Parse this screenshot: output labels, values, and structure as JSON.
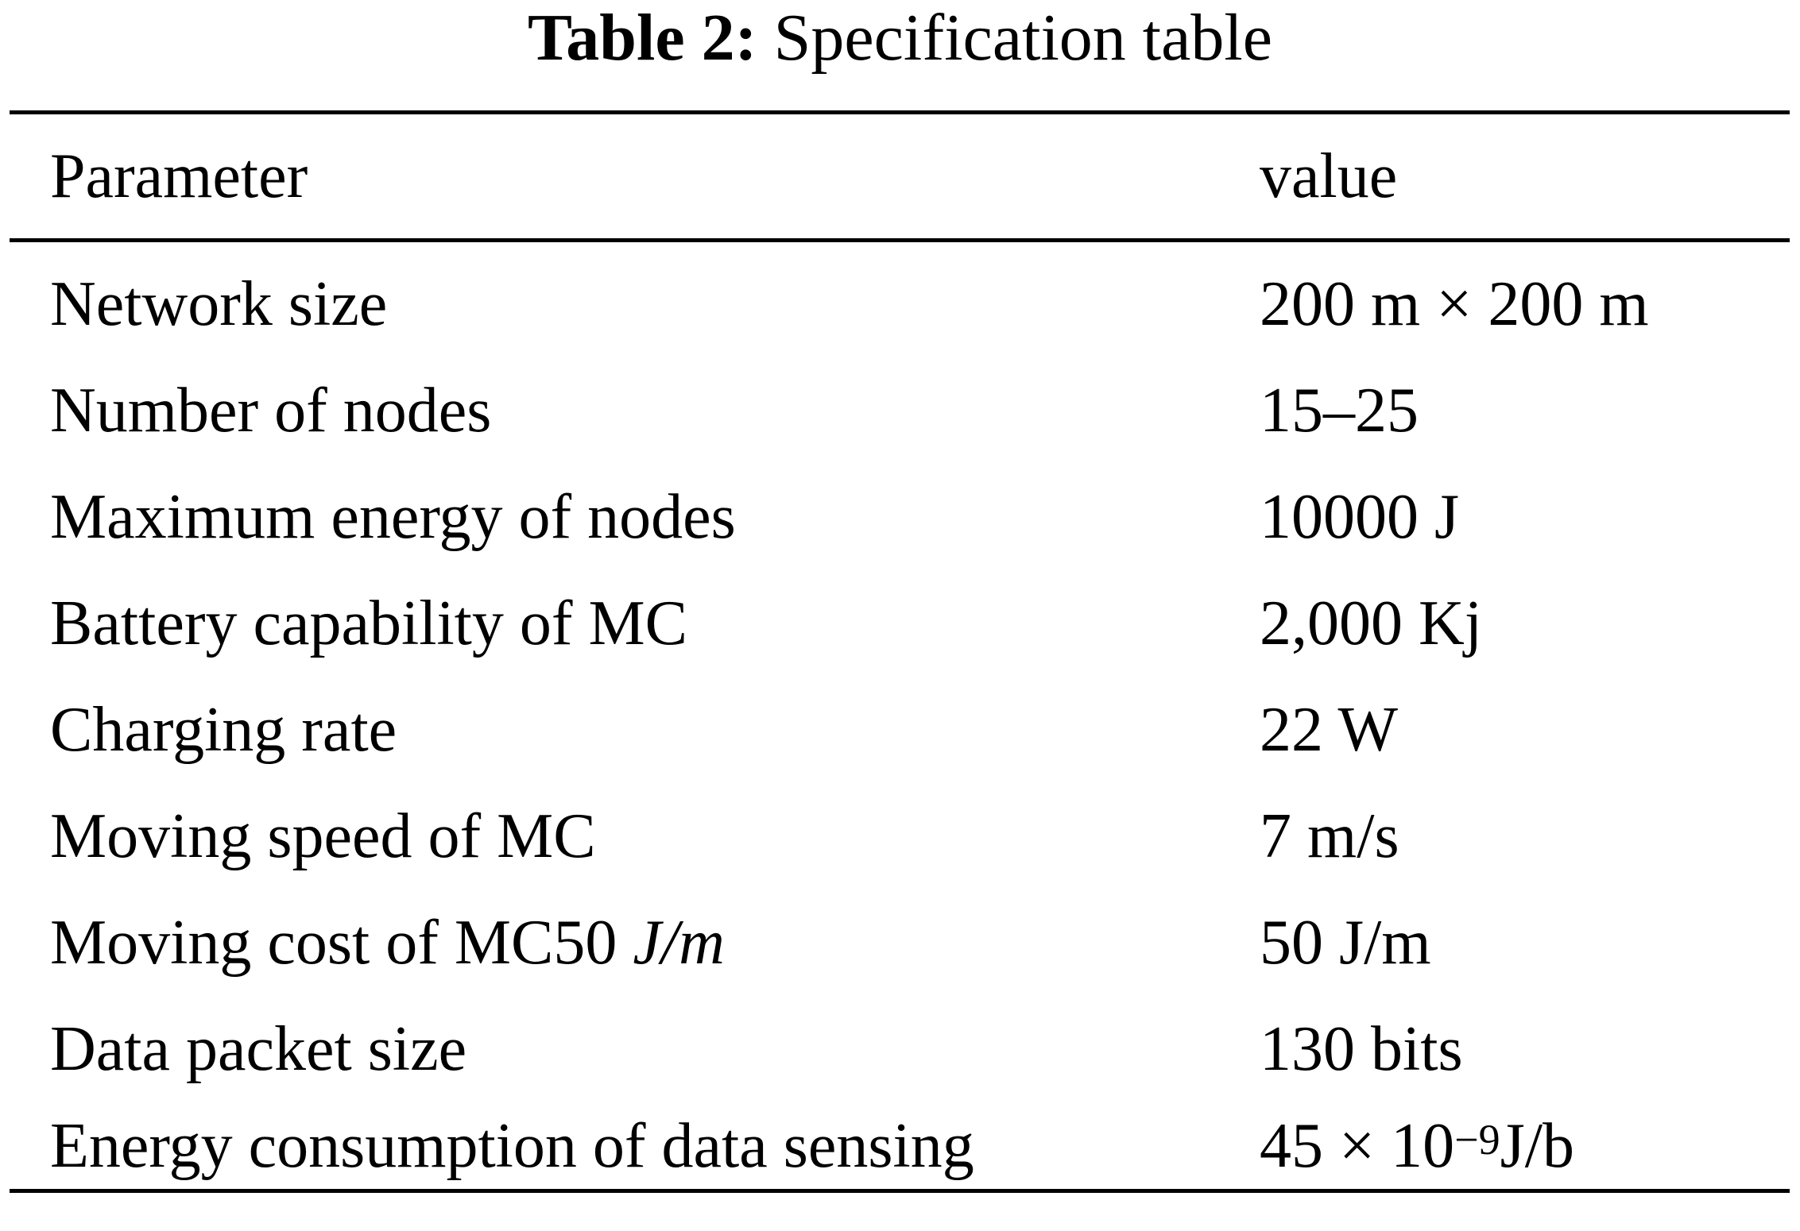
{
  "caption": {
    "label": "Table 2:",
    "text": "Specification table"
  },
  "table": {
    "headers": {
      "parameter": "Parameter",
      "value": "value"
    },
    "rows": [
      {
        "parameter": "Network size",
        "value": "200 m × 200 m"
      },
      {
        "parameter": "Number of nodes",
        "value": "15–25"
      },
      {
        "parameter": "Maximum energy of nodes",
        "value": "10000 J"
      },
      {
        "parameter": "Battery capability of MC",
        "value": "2,000 Kj"
      },
      {
        "parameter": "Charging rate",
        "value": "22 W"
      },
      {
        "parameter": "Moving speed of MC",
        "value": "7 m/s"
      },
      {
        "parameter": "Moving cost of MC50",
        "parameter_italic": "J/m",
        "value": "50 J/m"
      },
      {
        "parameter": "Data packet size",
        "value": "130 bits"
      },
      {
        "parameter": "Energy consumption of data sensing",
        "value": "45 × 10",
        "value_exponent": "−9",
        "value_suffix": "J/b"
      }
    ]
  }
}
